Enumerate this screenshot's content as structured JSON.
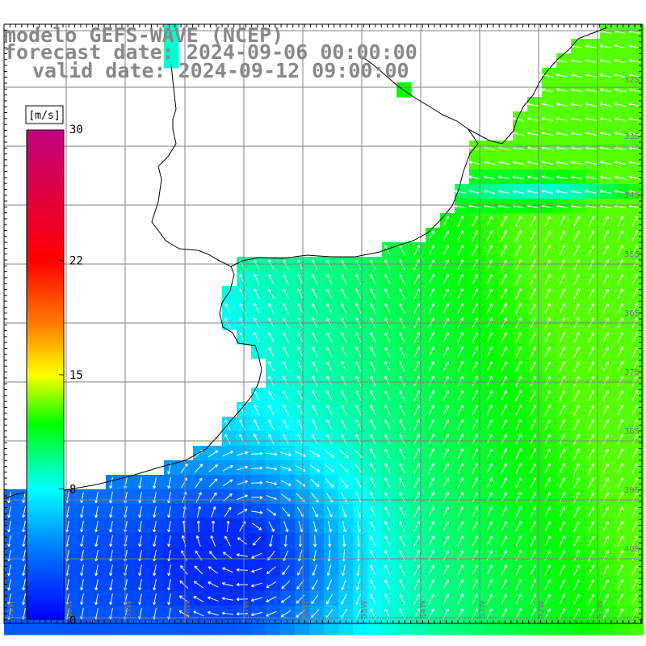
{
  "title": {
    "model": "modelo GEFS-WAVE (NCEP)",
    "forecast": "forecast date: 2024-09-06 00:00:00",
    "valid": "valid date: 2024-09-12 09:00:00"
  },
  "colorbar": {
    "unit": "[m/s]",
    "min": 0,
    "max": 30,
    "ticks": [
      {
        "value": 30,
        "label": "30"
      },
      {
        "value": 22,
        "label": "22"
      },
      {
        "value": 15,
        "label": "15"
      },
      {
        "value": 8,
        "label": "8"
      },
      {
        "value": 0,
        "label": "0"
      }
    ],
    "stops": [
      {
        "value": 0,
        "color": "#0000ff"
      },
      {
        "value": 4,
        "color": "#0070ff"
      },
      {
        "value": 8,
        "color": "#00ffff"
      },
      {
        "value": 12,
        "color": "#00ff00"
      },
      {
        "value": 15,
        "color": "#ffff00"
      },
      {
        "value": 18,
        "color": "#ff8000"
      },
      {
        "value": 22,
        "color": "#ff0000"
      },
      {
        "value": 30,
        "color": "#c00080"
      }
    ]
  },
  "map": {
    "lat_labels": [
      "32S",
      "33S",
      "34S",
      "35S",
      "36S",
      "37S",
      "38S",
      "39S",
      "40S",
      "41S"
    ],
    "lon_labels": [
      "61W",
      "60W",
      "59W",
      "58W",
      "57W",
      "56W",
      "55W",
      "54W",
      "53W",
      "52W",
      "51W"
    ],
    "colors": {
      "land": "#ffffff",
      "coast": "#000000",
      "grid": "#808080",
      "arrows": "#ffffff",
      "labels": "#777777"
    }
  }
}
